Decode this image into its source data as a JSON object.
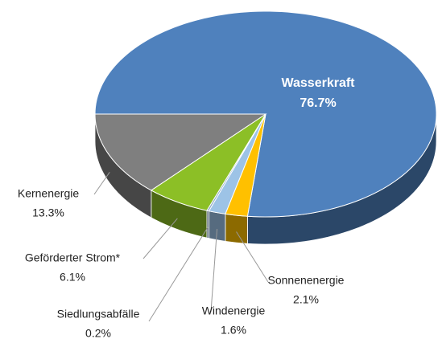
{
  "chart_data": {
    "type": "pie",
    "categories": [
      "Wasserkraft",
      "Sonnenenergie",
      "Windenergie",
      "Siedlungsabfälle",
      "Geförderter Strom*",
      "Kernenergie"
    ],
    "values": [
      76.7,
      2.1,
      1.6,
      0.2,
      6.1,
      13.3
    ],
    "value_labels": [
      "76.7%",
      "2.1%",
      "1.6%",
      "0.2%",
      "6.1%",
      "13.3%"
    ],
    "colors": [
      "#4f81bd",
      "#ffc000",
      "#9dc3e6",
      "#8ea9c8",
      "#8cbf26",
      "#7f7f7f"
    ]
  }
}
